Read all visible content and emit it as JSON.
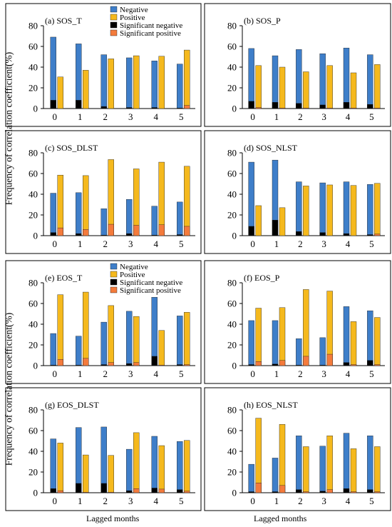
{
  "figure": {
    "ylabel_top": "Frequency of correlation coefficient(%)",
    "ylabel_bottom": "Frequency of correlation coefficient(%)",
    "xlabel_left": "Lagged months",
    "xlabel_right": "Lagged months"
  },
  "colors": {
    "negative": "#3e7ec9",
    "positive": "#f5b91d",
    "significant_negative": "#000000",
    "significant_positive": "#f47b3c"
  },
  "legend_labels": [
    "Negative",
    "Positive",
    "Significant negative",
    "Significant positive"
  ],
  "chart_data": [
    {
      "type": "bar",
      "panel": "a",
      "title": "(a) SOS_T",
      "legend": true,
      "categories": [
        "0",
        "1",
        "2",
        "3",
        "4",
        "5"
      ],
      "ylim": [
        0,
        80
      ],
      "yticks": [
        0,
        20,
        40,
        60,
        80
      ],
      "series": [
        {
          "name": "Negative",
          "values": [
            69,
            62.5,
            52,
            49,
            46,
            43
          ]
        },
        {
          "name": "Positive",
          "values": [
            30.5,
            37,
            48,
            51,
            50.5,
            56.5
          ]
        },
        {
          "name": "Significant negative",
          "values": [
            8,
            8,
            2,
            1,
            1,
            0.5
          ]
        },
        {
          "name": "Significant positive",
          "values": [
            0,
            0,
            0,
            0,
            0,
            3
          ]
        }
      ]
    },
    {
      "type": "bar",
      "panel": "b",
      "title": "(b) SOS_P",
      "legend": false,
      "categories": [
        "0",
        "1",
        "2",
        "3",
        "4",
        "5"
      ],
      "ylim": [
        0,
        80
      ],
      "yticks": [
        0,
        20,
        40,
        60,
        80
      ],
      "series": [
        {
          "name": "Negative",
          "values": [
            58,
            51,
            57,
            53,
            58.5,
            52
          ]
        },
        {
          "name": "Positive",
          "values": [
            41.5,
            40,
            35.5,
            41.5,
            34.5,
            42.5
          ]
        },
        {
          "name": "Significant negative",
          "values": [
            7,
            6,
            5,
            3.5,
            6,
            4
          ]
        },
        {
          "name": "Significant positive",
          "values": [
            1,
            0.5,
            0.5,
            0.5,
            0.5,
            0.5
          ]
        }
      ]
    },
    {
      "type": "bar",
      "panel": "c",
      "title": "(c) SOS_DLST",
      "legend": false,
      "categories": [
        "0",
        "1",
        "2",
        "3",
        "4",
        "5"
      ],
      "ylim": [
        0,
        80
      ],
      "yticks": [
        0,
        20,
        40,
        60,
        80
      ],
      "series": [
        {
          "name": "Negative",
          "values": [
            41,
            41.5,
            26,
            35,
            28.5,
            32.5
          ]
        },
        {
          "name": "Positive",
          "values": [
            58.5,
            58,
            73.5,
            64.5,
            71,
            67
          ]
        },
        {
          "name": "Significant negative",
          "values": [
            3,
            2,
            0.5,
            2,
            0.5,
            1
          ]
        },
        {
          "name": "Significant positive",
          "values": [
            7.5,
            6,
            11,
            10,
            10.5,
            9
          ]
        }
      ]
    },
    {
      "type": "bar",
      "panel": "d",
      "title": "(d) SOS_NLST",
      "legend": false,
      "categories": [
        "0",
        "1",
        "2",
        "3",
        "4",
        "5"
      ],
      "ylim": [
        0,
        80
      ],
      "yticks": [
        0,
        20,
        40,
        60,
        80
      ],
      "series": [
        {
          "name": "Negative",
          "values": [
            71,
            73,
            52,
            51,
            52,
            49.5
          ]
        },
        {
          "name": "Positive",
          "values": [
            29,
            27,
            48,
            49,
            48.5,
            50.5
          ]
        },
        {
          "name": "Significant negative",
          "values": [
            9,
            15,
            4,
            3,
            2,
            1
          ]
        },
        {
          "name": "Significant positive",
          "values": [
            0,
            0,
            0,
            0,
            0,
            1.5
          ]
        }
      ]
    },
    {
      "type": "bar",
      "panel": "e",
      "title": "(e) EOS_T",
      "legend": true,
      "categories": [
        "0",
        "1",
        "2",
        "3",
        "4",
        "5"
      ],
      "ylim": [
        0,
        80
      ],
      "yticks": [
        0,
        20,
        40,
        60,
        80
      ],
      "series": [
        {
          "name": "Negative",
          "values": [
            31,
            28.5,
            42,
            52.5,
            66,
            48
          ]
        },
        {
          "name": "Positive",
          "values": [
            68.5,
            71,
            58,
            47.5,
            34,
            51.5
          ]
        },
        {
          "name": "Significant negative",
          "values": [
            0.5,
            0.5,
            1,
            2,
            9,
            1
          ]
        },
        {
          "name": "Significant positive",
          "values": [
            6,
            7,
            3,
            3,
            0.5,
            1
          ]
        }
      ]
    },
    {
      "type": "bar",
      "panel": "f",
      "title": "(f) EOS_P",
      "legend": false,
      "categories": [
        "0",
        "1",
        "2",
        "3",
        "4",
        "5"
      ],
      "ylim": [
        0,
        80
      ],
      "yticks": [
        0,
        20,
        40,
        60,
        80
      ],
      "series": [
        {
          "name": "Negative",
          "values": [
            43.5,
            43.5,
            26,
            27,
            57,
            53
          ]
        },
        {
          "name": "Positive",
          "values": [
            55.5,
            56,
            73.5,
            72,
            42.5,
            46.5
          ]
        },
        {
          "name": "Significant negative",
          "values": [
            1,
            1.5,
            0.5,
            0.5,
            3,
            5
          ]
        },
        {
          "name": "Significant positive",
          "values": [
            4,
            5,
            9,
            11,
            1,
            1
          ]
        }
      ]
    },
    {
      "type": "bar",
      "panel": "g",
      "title": "(g) EOS_DLST",
      "legend": false,
      "categories": [
        "0",
        "1",
        "2",
        "3",
        "4",
        "5"
      ],
      "ylim": [
        0,
        80
      ],
      "yticks": [
        0,
        20,
        40,
        60,
        80
      ],
      "series": [
        {
          "name": "Negative",
          "values": [
            52,
            63,
            63.5,
            42,
            54.5,
            49.5
          ]
        },
        {
          "name": "Positive",
          "values": [
            48,
            36.5,
            36,
            58,
            45.5,
            50.5
          ]
        },
        {
          "name": "Significant negative",
          "values": [
            4,
            9,
            9,
            2,
            4.5,
            3
          ]
        },
        {
          "name": "Significant positive",
          "values": [
            2,
            0.5,
            0.5,
            4,
            3.5,
            1.5
          ]
        }
      ]
    },
    {
      "type": "bar",
      "panel": "h",
      "title": "(h) EOS_NLST",
      "legend": false,
      "categories": [
        "0",
        "1",
        "2",
        "3",
        "4",
        "5"
      ],
      "ylim": [
        0,
        80
      ],
      "yticks": [
        0,
        20,
        40,
        60,
        80
      ],
      "series": [
        {
          "name": "Negative",
          "values": [
            27.5,
            33.5,
            55,
            45,
            57.5,
            55
          ]
        },
        {
          "name": "Positive",
          "values": [
            72,
            66,
            44.5,
            55,
            42.5,
            44.5
          ]
        },
        {
          "name": "Significant negative",
          "values": [
            1,
            1,
            3,
            1.5,
            4,
            3
          ]
        },
        {
          "name": "Significant positive",
          "values": [
            9.5,
            7,
            1,
            3,
            1,
            1
          ]
        }
      ]
    }
  ]
}
